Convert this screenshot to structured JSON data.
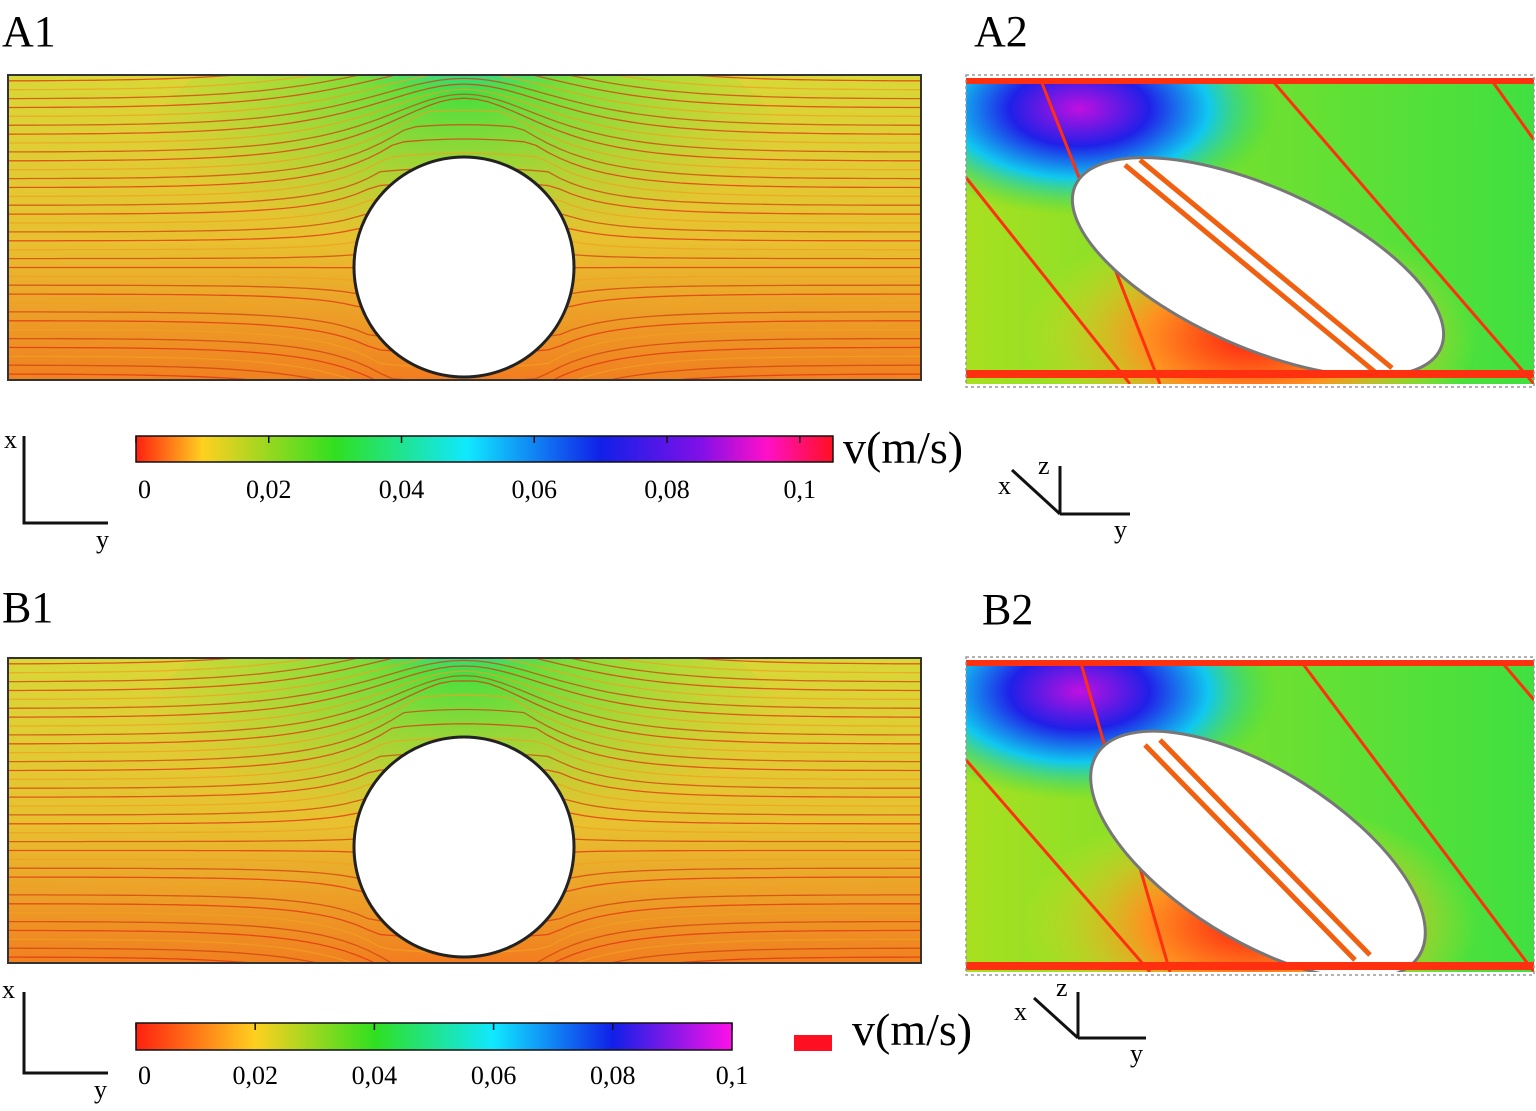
{
  "panels": [
    {
      "id": "A1",
      "label": "A1"
    },
    {
      "id": "A2",
      "label": "A2"
    },
    {
      "id": "B1",
      "label": "B1"
    },
    {
      "id": "B2",
      "label": "B2"
    }
  ],
  "colorbars": [
    {
      "id": "top",
      "unit": "v(m/s)",
      "ticks": [
        "0",
        "0,02",
        "0,04",
        "0,06",
        "0,08",
        "0,1"
      ],
      "range": [
        0,
        0.105
      ],
      "stops": [
        {
          "v": 0.0,
          "color": "#ff2010"
        },
        {
          "v": 0.01,
          "color": "#ffd020"
        },
        {
          "v": 0.03,
          "color": "#30e020"
        },
        {
          "v": 0.05,
          "color": "#10e8ff"
        },
        {
          "v": 0.07,
          "color": "#1020e8"
        },
        {
          "v": 0.085,
          "color": "#8010e8"
        },
        {
          "v": 0.095,
          "color": "#ff10c8"
        },
        {
          "v": 0.105,
          "color": "#ff1020"
        }
      ]
    },
    {
      "id": "bottom",
      "unit": "v(m/s)",
      "ticks": [
        "0",
        "0,02",
        "0,04",
        "0,06",
        "0,08",
        "0,1"
      ],
      "range": [
        0,
        0.1
      ],
      "stops": [
        {
          "v": 0.0,
          "color": "#ff2010"
        },
        {
          "v": 0.02,
          "color": "#ffd020"
        },
        {
          "v": 0.04,
          "color": "#30e020"
        },
        {
          "v": 0.06,
          "color": "#10e8ff"
        },
        {
          "v": 0.08,
          "color": "#1020e8"
        },
        {
          "v": 0.1,
          "color": "#ff10e8"
        }
      ]
    }
  ],
  "axes": {
    "planar": {
      "vertical": "x",
      "horizontal": "y"
    },
    "iso": {
      "diagonal": "x",
      "vertical": "z",
      "horizontal": "y"
    }
  },
  "colors": {
    "slow": "#ff2a10",
    "mid": "#c8e030",
    "fast": "#1a10e0",
    "peak": "#ff10d0",
    "streamline": "#e03010",
    "outline": "#222222"
  }
}
